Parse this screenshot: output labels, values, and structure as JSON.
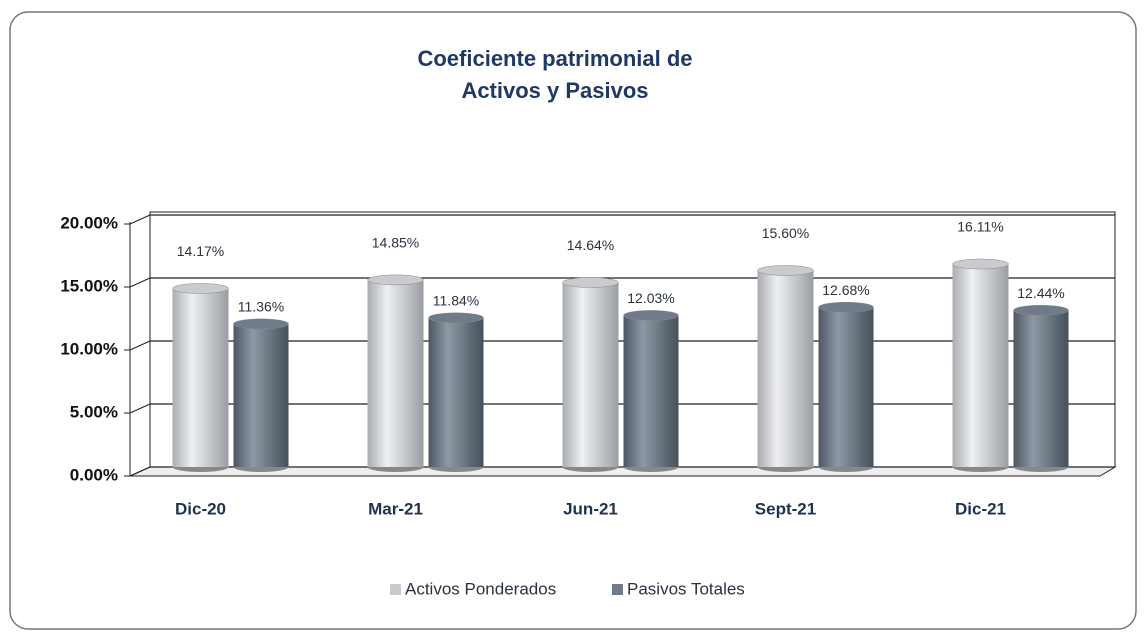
{
  "chart_data": {
    "type": "bar",
    "title": [
      "Coeficiente patrimonial de",
      "Activos y Pasivos"
    ],
    "categories": [
      "Dic-20",
      "Mar-21",
      "Jun-21",
      "Sept-21",
      "Dic-21"
    ],
    "series": [
      {
        "name": "Activos Ponderados",
        "color": "#c9cbce",
        "values": [
          14.17,
          14.85,
          14.64,
          15.6,
          16.11
        ],
        "value_labels": [
          "14.17%",
          "14.85%",
          "14.64%",
          "15.60%",
          "16.11%"
        ]
      },
      {
        "name": "Pasivos Totales",
        "color": "#6f7b88",
        "values": [
          11.36,
          11.84,
          12.03,
          12.68,
          12.44
        ],
        "value_labels": [
          "11.36%",
          "11.84%",
          "12.03%",
          "12.68%",
          "12.44%"
        ]
      }
    ],
    "ylim": [
      0,
      20
    ],
    "yticks": [
      {
        "value": 0,
        "label": "0.00%"
      },
      {
        "value": 5,
        "label": "5.00%"
      },
      {
        "value": 10,
        "label": "10.00%"
      },
      {
        "value": 15,
        "label": "15.00%"
      },
      {
        "value": 20,
        "label": "20.00%"
      }
    ],
    "grid": true,
    "legend": "bottom"
  }
}
